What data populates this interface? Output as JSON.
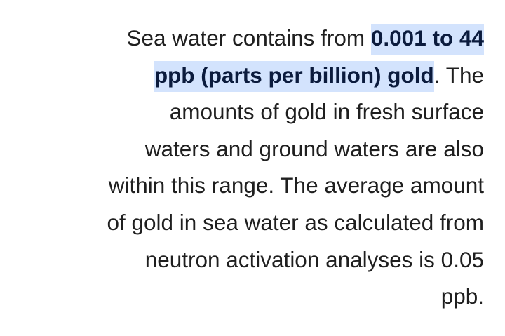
{
  "paragraph": {
    "line1_text": "Sea water contains from ",
    "line1_highlight": "0.001 to 44",
    "line2_highlight": "ppb (parts per billion) gold",
    "line2_text": ". The",
    "lines": [
      "amounts of gold in fresh surface",
      "waters and ground waters are also",
      "within this range. The average amount",
      "of gold in sea water as calculated from",
      "neutron activation analyses is 0.05",
      "ppb."
    ]
  },
  "colors": {
    "highlight": "#d3e3fd",
    "text": "#1f1f1f",
    "highlight_text": "#0b1b3d"
  }
}
